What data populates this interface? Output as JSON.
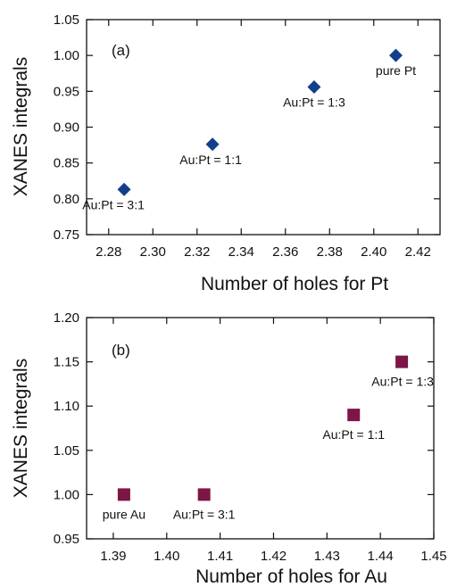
{
  "chart_data": [
    {
      "type": "scatter",
      "panel": "(a)",
      "xlabel": "Number of holes for Pt",
      "ylabel": "XANES integrals",
      "xlim": [
        2.27,
        2.43
      ],
      "ylim": [
        0.75,
        1.05
      ],
      "xticks": [
        "2.28",
        "2.30",
        "2.32",
        "2.34",
        "2.36",
        "2.38",
        "2.40",
        "2.42"
      ],
      "yticks": [
        "0.75",
        "0.80",
        "0.85",
        "0.90",
        "0.95",
        "1.00",
        "1.05"
      ],
      "marker": "diamond",
      "color": "#123f8c",
      "points": [
        {
          "x": 2.287,
          "y": 0.813,
          "label": "Au:Pt = 3:1"
        },
        {
          "x": 2.327,
          "y": 0.876,
          "label": "Au:Pt = 1:1"
        },
        {
          "x": 2.373,
          "y": 0.956,
          "label": "Au:Pt = 1:3"
        },
        {
          "x": 2.41,
          "y": 1.0,
          "label": "pure Pt"
        }
      ]
    },
    {
      "type": "scatter",
      "panel": "(b)",
      "xlabel": "Number of holes for Au",
      "ylabel": "XANES integrals",
      "xlim": [
        1.385,
        1.45
      ],
      "ylim": [
        0.95,
        1.2
      ],
      "xticks": [
        "1.39",
        "1.40",
        "1.41",
        "1.42",
        "1.43",
        "1.44",
        "1.45"
      ],
      "yticks": [
        "0.95",
        "1.00",
        "1.05",
        "1.10",
        "1.15",
        "1.20"
      ],
      "marker": "square",
      "color": "#7d1545",
      "points": [
        {
          "x": 1.392,
          "y": 1.0,
          "label": "pure Au"
        },
        {
          "x": 1.407,
          "y": 1.0,
          "label": "Au:Pt = 3:1"
        },
        {
          "x": 1.435,
          "y": 1.09,
          "label": "Au:Pt = 1:1"
        },
        {
          "x": 1.444,
          "y": 1.15,
          "label": "Au:Pt = 1:3"
        }
      ]
    }
  ]
}
